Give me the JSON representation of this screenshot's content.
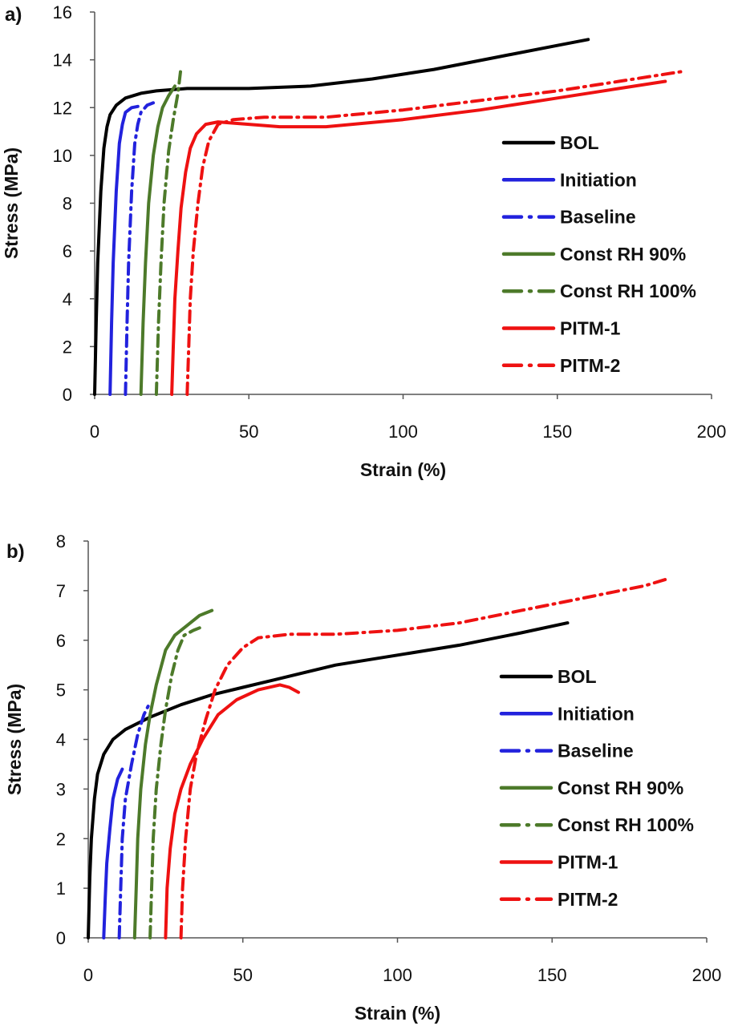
{
  "chart_data": [
    {
      "type": "line",
      "panel_label": "a)",
      "xlabel": "Strain (%)",
      "ylabel": "Stress (MPa)",
      "xlim": [
        0,
        200
      ],
      "ylim": [
        0,
        16
      ],
      "xticks": [
        "0",
        "50",
        "100",
        "150",
        "200"
      ],
      "yticks": [
        "0",
        "2",
        "4",
        "6",
        "8",
        "10",
        "12",
        "14",
        "16"
      ],
      "grid": false,
      "legend_position": "right",
      "series": [
        {
          "name": "BOL",
          "color": "#000000",
          "style": "solid",
          "points": [
            [
              0,
              0
            ],
            [
              0.5,
              3
            ],
            [
              1,
              5.5
            ],
            [
              2,
              8.5
            ],
            [
              3,
              10.3
            ],
            [
              4,
              11.2
            ],
            [
              5,
              11.7
            ],
            [
              7,
              12.1
            ],
            [
              10,
              12.4
            ],
            [
              15,
              12.6
            ],
            [
              20,
              12.7
            ],
            [
              30,
              12.8
            ],
            [
              50,
              12.8
            ],
            [
              70,
              12.9
            ],
            [
              90,
              13.2
            ],
            [
              110,
              13.6
            ],
            [
              130,
              14.1
            ],
            [
              150,
              14.6
            ],
            [
              160,
              14.85
            ]
          ]
        },
        {
          "name": "Initiation",
          "color": "#2222dd",
          "style": "solid",
          "points": [
            [
              5,
              0
            ],
            [
              5.5,
              3
            ],
            [
              6,
              5.5
            ],
            [
              7,
              8.5
            ],
            [
              8,
              10.5
            ],
            [
              9,
              11.3
            ],
            [
              10,
              11.8
            ],
            [
              12,
              12.0
            ],
            [
              14,
              12.05
            ]
          ]
        },
        {
          "name": "Baseline",
          "color": "#2222dd",
          "style": "dashdot",
          "points": [
            [
              10,
              0
            ],
            [
              10.5,
              3
            ],
            [
              11,
              5.5
            ],
            [
              12,
              8.5
            ],
            [
              13,
              10.5
            ],
            [
              14,
              11.3
            ],
            [
              15,
              11.8
            ],
            [
              17,
              12.1
            ],
            [
              19,
              12.2
            ]
          ]
        },
        {
          "name": "Const RH 90%",
          "color": "#4d7a2a",
          "style": "solid",
          "points": [
            [
              15,
              0
            ],
            [
              15.7,
              3
            ],
            [
              16.5,
              5.5
            ],
            [
              17.5,
              8
            ],
            [
              19,
              10
            ],
            [
              20.5,
              11.2
            ],
            [
              22,
              12
            ],
            [
              24,
              12.5
            ],
            [
              26,
              12.9
            ]
          ]
        },
        {
          "name": "Const RH 100%",
          "color": "#4d7a2a",
          "style": "dashdot",
          "points": [
            [
              20,
              0
            ],
            [
              20.7,
              3
            ],
            [
              21.5,
              5.5
            ],
            [
              22.5,
              8
            ],
            [
              24,
              10.2
            ],
            [
              25.5,
              11.5
            ],
            [
              27,
              12.6
            ],
            [
              28,
              13.7
            ]
          ]
        },
        {
          "name": "PITM-1",
          "color": "#ee1111",
          "style": "solid",
          "points": [
            [
              25,
              0
            ],
            [
              25.5,
              2
            ],
            [
              26,
              4
            ],
            [
              27,
              6
            ],
            [
              28,
              7.8
            ],
            [
              29.5,
              9.3
            ],
            [
              31,
              10.3
            ],
            [
              33,
              10.9
            ],
            [
              36,
              11.3
            ],
            [
              40,
              11.4
            ],
            [
              50,
              11.3
            ],
            [
              60,
              11.2
            ],
            [
              75,
              11.2
            ],
            [
              100,
              11.5
            ],
            [
              125,
              11.9
            ],
            [
              150,
              12.4
            ],
            [
              170,
              12.8
            ],
            [
              185,
              13.1
            ]
          ]
        },
        {
          "name": "PITM-2",
          "color": "#ee1111",
          "style": "dashdot",
          "points": [
            [
              30,
              0
            ],
            [
              30.5,
              2
            ],
            [
              31,
              4
            ],
            [
              32,
              6
            ],
            [
              33.5,
              8
            ],
            [
              35,
              9.5
            ],
            [
              37,
              10.6
            ],
            [
              40,
              11.3
            ],
            [
              45,
              11.5
            ],
            [
              55,
              11.6
            ],
            [
              75,
              11.6
            ],
            [
              100,
              11.9
            ],
            [
              125,
              12.3
            ],
            [
              150,
              12.7
            ],
            [
              170,
              13.1
            ],
            [
              190,
              13.5
            ]
          ]
        }
      ]
    },
    {
      "type": "line",
      "panel_label": "b)",
      "xlabel": "Strain (%)",
      "ylabel": "Stress (MPa)",
      "xlim": [
        0,
        200
      ],
      "ylim": [
        0,
        8
      ],
      "xticks": [
        "0",
        "50",
        "100",
        "150",
        "200"
      ],
      "yticks": [
        "0",
        "1",
        "2",
        "3",
        "4",
        "5",
        "6",
        "7",
        "8"
      ],
      "grid": false,
      "legend_position": "right",
      "series": [
        {
          "name": "BOL",
          "color": "#000000",
          "style": "solid",
          "points": [
            [
              0,
              0
            ],
            [
              0.5,
              1.2
            ],
            [
              1,
              2
            ],
            [
              2,
              2.8
            ],
            [
              3,
              3.3
            ],
            [
              5,
              3.7
            ],
            [
              8,
              4.0
            ],
            [
              12,
              4.2
            ],
            [
              20,
              4.45
            ],
            [
              30,
              4.7
            ],
            [
              40,
              4.9
            ],
            [
              50,
              5.05
            ],
            [
              60,
              5.2
            ],
            [
              80,
              5.5
            ],
            [
              100,
              5.7
            ],
            [
              120,
              5.9
            ],
            [
              140,
              6.15
            ],
            [
              155,
              6.35
            ]
          ]
        },
        {
          "name": "Initiation",
          "color": "#2222dd",
          "style": "solid",
          "points": [
            [
              5,
              0
            ],
            [
              5.5,
              0.8
            ],
            [
              6,
              1.5
            ],
            [
              7,
              2.2
            ],
            [
              8,
              2.8
            ],
            [
              9.5,
              3.2
            ],
            [
              11,
              3.4
            ]
          ]
        },
        {
          "name": "Baseline",
          "color": "#2222dd",
          "style": "dashdot",
          "points": [
            [
              10,
              0
            ],
            [
              10.5,
              1
            ],
            [
              11,
              2
            ],
            [
              12,
              2.8
            ],
            [
              14,
              3.5
            ],
            [
              16,
              4.1
            ],
            [
              18,
              4.5
            ],
            [
              20,
              4.75
            ]
          ]
        },
        {
          "name": "Const RH 90%",
          "color": "#4d7a2a",
          "style": "solid",
          "points": [
            [
              15,
              0
            ],
            [
              15.5,
              1
            ],
            [
              16,
              2
            ],
            [
              17,
              3
            ],
            [
              18.5,
              3.9
            ],
            [
              20,
              4.5
            ],
            [
              22,
              5.1
            ],
            [
              25,
              5.8
            ],
            [
              28,
              6.1
            ],
            [
              32,
              6.3
            ],
            [
              36,
              6.5
            ],
            [
              40,
              6.6
            ]
          ]
        },
        {
          "name": "Const RH 100%",
          "color": "#4d7a2a",
          "style": "dashdot",
          "points": [
            [
              20,
              0
            ],
            [
              20.5,
              1
            ],
            [
              21,
              2
            ],
            [
              22,
              3
            ],
            [
              23.5,
              3.9
            ],
            [
              25,
              4.6
            ],
            [
              27,
              5.3
            ],
            [
              29,
              5.8
            ],
            [
              31,
              6.1
            ],
            [
              34,
              6.2
            ],
            [
              36,
              6.25
            ]
          ]
        },
        {
          "name": "PITM-1",
          "color": "#ee1111",
          "style": "solid",
          "points": [
            [
              25,
              0
            ],
            [
              25.5,
              1
            ],
            [
              26.5,
              1.8
            ],
            [
              28,
              2.5
            ],
            [
              30,
              3.0
            ],
            [
              33,
              3.5
            ],
            [
              37,
              4.0
            ],
            [
              42,
              4.5
            ],
            [
              48,
              4.8
            ],
            [
              55,
              5.0
            ],
            [
              62,
              5.1
            ],
            [
              65,
              5.05
            ],
            [
              68,
              4.95
            ]
          ]
        },
        {
          "name": "PITM-2",
          "color": "#ee1111",
          "style": "dashdot",
          "points": [
            [
              30,
              0
            ],
            [
              30.5,
              1
            ],
            [
              31.5,
              2
            ],
            [
              33,
              3
            ],
            [
              35,
              3.7
            ],
            [
              38,
              4.4
            ],
            [
              41,
              5.0
            ],
            [
              45,
              5.5
            ],
            [
              50,
              5.85
            ],
            [
              55,
              6.05
            ],
            [
              65,
              6.12
            ],
            [
              80,
              6.12
            ],
            [
              100,
              6.2
            ],
            [
              120,
              6.35
            ],
            [
              140,
              6.6
            ],
            [
              160,
              6.85
            ],
            [
              180,
              7.1
            ],
            [
              188,
              7.25
            ]
          ]
        }
      ]
    }
  ]
}
